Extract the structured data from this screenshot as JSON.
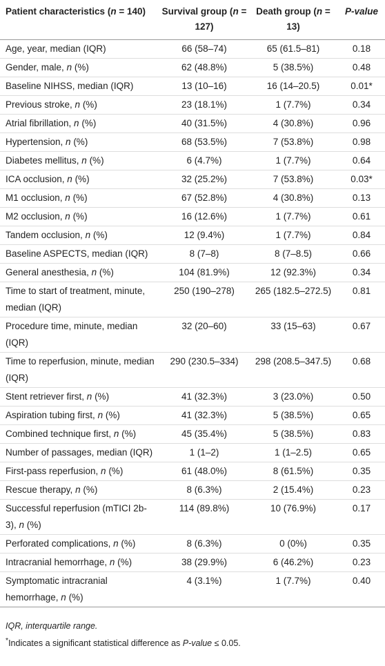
{
  "table": {
    "header": [
      "Patient characteristics (n = 140)",
      "Survival group (n = 127)",
      "Death group (n = 13)",
      "P-value"
    ],
    "rows": [
      [
        "Age, year, median (IQR)",
        "66 (58–74)",
        "65 (61.5–81)",
        "0.18"
      ],
      [
        "Gender, male, n (%)",
        "62 (48.8%)",
        "5 (38.5%)",
        "0.48"
      ],
      [
        "Baseline NIHSS, median (IQR)",
        "13 (10–16)",
        "16 (14–20.5)",
        "0.01*"
      ],
      [
        "Previous stroke, n (%)",
        "23 (18.1%)",
        "1 (7.7%)",
        "0.34"
      ],
      [
        "Atrial fibrillation, n (%)",
        "40 (31.5%)",
        "4 (30.8%)",
        "0.96"
      ],
      [
        "Hypertension, n (%)",
        "68 (53.5%)",
        "7 (53.8%)",
        "0.98"
      ],
      [
        "Diabetes mellitus, n (%)",
        "6 (4.7%)",
        "1 (7.7%)",
        "0.64"
      ],
      [
        "ICA occlusion, n (%)",
        "32 (25.2%)",
        "7 (53.8%)",
        "0.03*"
      ],
      [
        "M1 occlusion, n (%)",
        "67 (52.8%)",
        "4 (30.8%)",
        "0.13"
      ],
      [
        "M2 occlusion, n (%)",
        "16 (12.6%)",
        "1 (7.7%)",
        "0.61"
      ],
      [
        "Tandem occlusion, n (%)",
        "12 (9.4%)",
        "1 (7.7%)",
        "0.84"
      ],
      [
        "Baseline ASPECTS, median (IQR)",
        "8 (7–8)",
        "8 (7–8.5)",
        "0.66"
      ],
      [
        "General anesthesia, n (%)",
        "104 (81.9%)",
        "12 (92.3%)",
        "0.34"
      ],
      [
        "Time to start of treatment, minute, median (IQR)",
        "250 (190–278)",
        "265 (182.5–272.5)",
        "0.81"
      ],
      [
        "Procedure time, minute, median (IQR)",
        "32 (20–60)",
        "33 (15–63)",
        "0.67"
      ],
      [
        "Time to reperfusion, minute, median (IQR)",
        "290 (230.5–334)",
        "298 (208.5–347.5)",
        "0.68"
      ],
      [
        "Stent retriever first, n (%)",
        "41 (32.3%)",
        "3 (23.0%)",
        "0.50"
      ],
      [
        "Aspiration tubing first, n (%)",
        "41 (32.3%)",
        "5 (38.5%)",
        "0.65"
      ],
      [
        "Combined technique first, n (%)",
        "45 (35.4%)",
        "5 (38.5%)",
        "0.83"
      ],
      [
        "Number of passages, median (IQR)",
        "1 (1–2)",
        "1 (1–2.5)",
        "0.65"
      ],
      [
        "First-pass reperfusion, n (%)",
        "61 (48.0%)",
        "8 (61.5%)",
        "0.35"
      ],
      [
        "Rescue therapy, n (%)",
        "8 (6.3%)",
        "2 (15.4%)",
        "0.23"
      ],
      [
        "Successful reperfusion (mTICI 2b-3), n (%)",
        "114 (89.8%)",
        "10 (76.9%)",
        "0.17"
      ],
      [
        "Perforated complications, n (%)",
        "8 (6.3%)",
        "0 (0%)",
        "0.35"
      ],
      [
        "Intracranial hemorrhage, n (%)",
        "38 (29.9%)",
        "6 (46.2%)",
        "0.23"
      ],
      [
        "Symptomatic intracranial hemorrhage, n (%)",
        "4 (3.1%)",
        "1 (7.7%)",
        "0.40"
      ]
    ]
  },
  "footnotes": [
    "IQR, interquartile range.",
    "*Indicates a significant statistical difference as P-value ≤ 0.05."
  ]
}
